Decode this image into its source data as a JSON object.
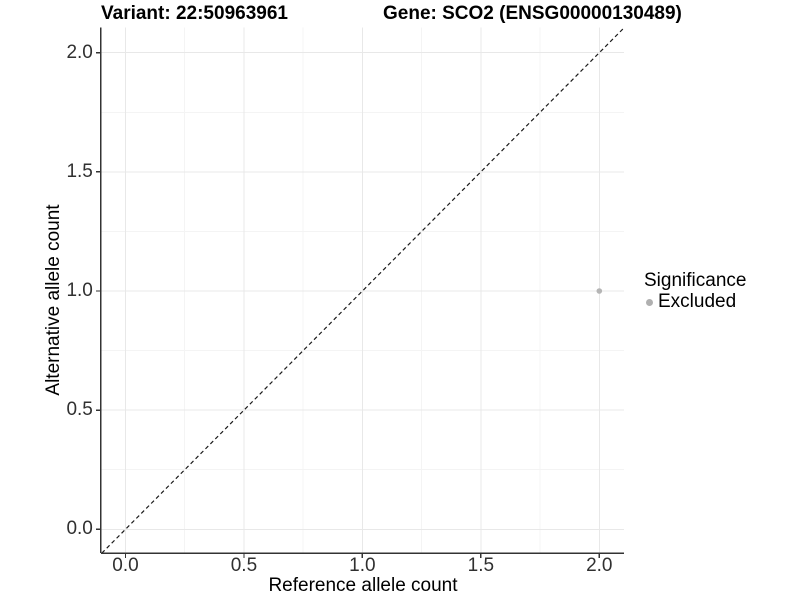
{
  "chart_data": {
    "type": "scatter",
    "titles": {
      "left": "Variant: 22:50963961",
      "right": "Gene: SCO2 (ENSG00000130489)"
    },
    "xlabel": "Reference allele count",
    "ylabel": "Alternative allele count",
    "x_ticks": {
      "values": [
        0,
        0.5,
        1,
        1.5,
        2
      ],
      "labels": [
        "0.0",
        "0.5",
        "1.0",
        "1.5",
        "2.0"
      ]
    },
    "y_ticks": {
      "values": [
        0,
        0.5,
        1,
        1.5,
        2
      ],
      "labels": [
        "0.0",
        "0.5",
        "1.0",
        "1.5",
        "2.0"
      ]
    },
    "x_minor_ticks": [
      0.25,
      0.75,
      1.25,
      1.75
    ],
    "y_minor_ticks": [
      0.25,
      0.75,
      1.25,
      1.75
    ],
    "xlim": [
      -0.104,
      2.105
    ],
    "ylim": [
      -0.1,
      2.105
    ],
    "grid": "major+minor",
    "points": [
      {
        "x": 2,
        "y": 1,
        "significance": "Excluded"
      }
    ],
    "reference_line": {
      "type": "identity",
      "equation": "y = x",
      "style": "dashed"
    },
    "legend": {
      "position": "right",
      "title": "Significance",
      "items": [
        {
          "label": "Excluded",
          "color": "#b0b0b0",
          "marker": "circle"
        }
      ]
    },
    "colors": {
      "point": "#b5b5b5",
      "ref_line": "#1a1a1a",
      "axis": "#333333",
      "grid_major": "#e8e8e8",
      "grid_minor": "#f4f4f4",
      "tick_text": "#303030",
      "title_text": "#000000",
      "background": "#ffffff"
    }
  }
}
